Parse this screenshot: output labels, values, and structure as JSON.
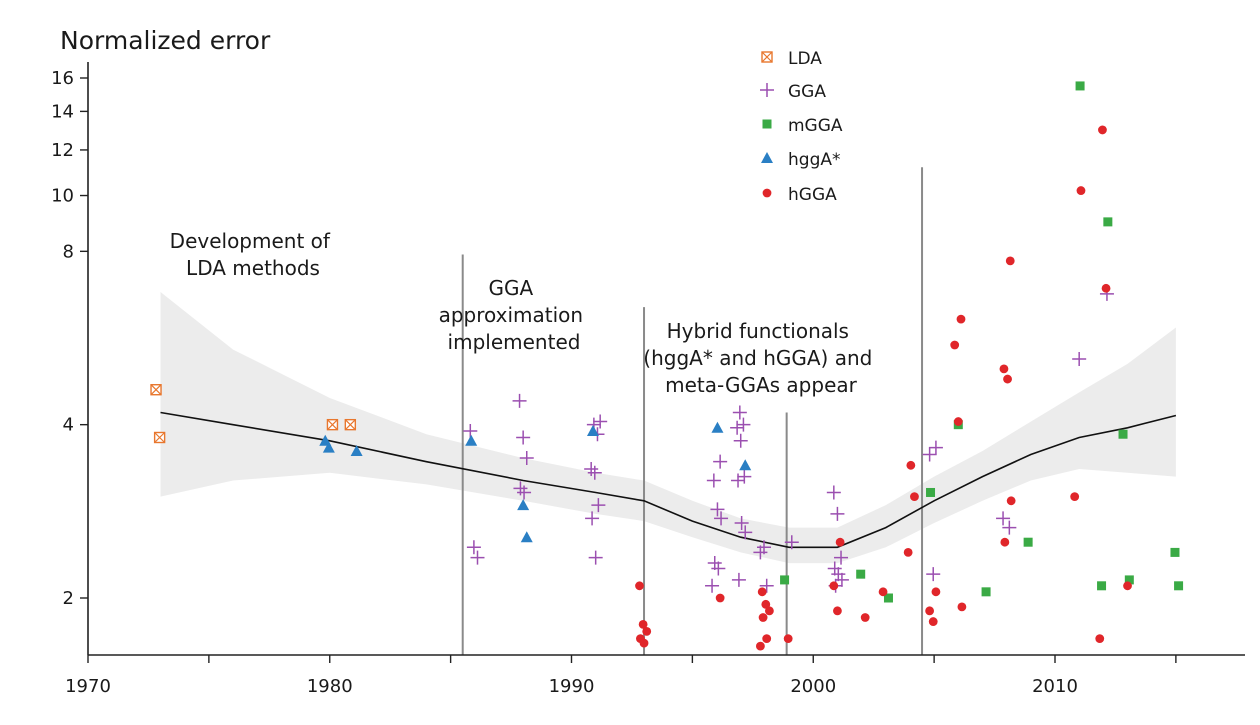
{
  "chart_data": {
    "type": "scatter",
    "title": "Normalized error",
    "xlabel": "",
    "ylabel": "Normalized error",
    "y_scale": "log2",
    "xlim": [
      1970,
      2017
    ],
    "ylim": [
      1.55,
      18
    ],
    "x_ticks": [
      1970,
      1980,
      1990,
      2000,
      2010
    ],
    "x_minor_ticks": [
      1975,
      1985,
      1995,
      2005,
      2015
    ],
    "y_ticks": [
      2,
      4,
      8,
      10,
      12,
      14,
      16
    ],
    "legend": [
      {
        "key": "LDA",
        "label": "LDA",
        "marker": "boxed-x",
        "color": "#e8772e"
      },
      {
        "key": "GGA",
        "label": "GGA",
        "marker": "plus",
        "color": "#9b4fb0"
      },
      {
        "key": "mGGA",
        "label": "mGGA",
        "marker": "square",
        "color": "#3aaa45"
      },
      {
        "key": "hggA",
        "label": "hggA*",
        "marker": "triangle",
        "color": "#2a7fc4"
      },
      {
        "key": "hGGA",
        "label": "hGGA",
        "marker": "circle",
        "color": "#e0262a"
      }
    ],
    "series": [
      {
        "name": "LDA",
        "points": [
          [
            1973,
            4.6
          ],
          [
            1973,
            3.8
          ],
          [
            1980,
            4.0
          ],
          [
            1981,
            4.0
          ]
        ]
      },
      {
        "name": "GGA",
        "points": [
          [
            1986,
            3.9
          ],
          [
            1986,
            2.45
          ],
          [
            1986,
            2.35
          ],
          [
            1988,
            4.4
          ],
          [
            1988,
            3.8
          ],
          [
            1988,
            3.5
          ],
          [
            1988,
            3.1
          ],
          [
            1988,
            3.05
          ],
          [
            1991,
            4.05
          ],
          [
            1991,
            4.0
          ],
          [
            1991,
            3.85
          ],
          [
            1991,
            3.35
          ],
          [
            1991,
            3.3
          ],
          [
            1991,
            2.9
          ],
          [
            1991,
            2.75
          ],
          [
            1991,
            2.35
          ],
          [
            1996,
            3.45
          ],
          [
            1996,
            3.2
          ],
          [
            1996,
            2.85
          ],
          [
            1996,
            2.75
          ],
          [
            1996,
            2.3
          ],
          [
            1996,
            2.25
          ],
          [
            1996,
            2.1
          ],
          [
            1997,
            4.2
          ],
          [
            1997,
            4.0
          ],
          [
            1997,
            3.95
          ],
          [
            1997,
            3.75
          ],
          [
            1997,
            3.25
          ],
          [
            1997,
            3.2
          ],
          [
            1997,
            2.7
          ],
          [
            1997,
            2.6
          ],
          [
            1997,
            2.15
          ],
          [
            1998,
            2.1
          ],
          [
            1998,
            2.4
          ],
          [
            1998,
            2.45
          ],
          [
            1999,
            2.5
          ],
          [
            2001,
            3.05
          ],
          [
            2001,
            2.8
          ],
          [
            2001,
            2.35
          ],
          [
            2001,
            2.25
          ],
          [
            2001,
            2.2
          ],
          [
            2001,
            2.15
          ],
          [
            2001,
            2.1
          ],
          [
            2005,
            3.65
          ],
          [
            2005,
            3.55
          ],
          [
            2005,
            2.2
          ],
          [
            2008,
            2.65
          ],
          [
            2008,
            2.75
          ],
          [
            2011,
            5.2
          ],
          [
            2012,
            6.75
          ]
        ]
      },
      {
        "name": "mGGA",
        "points": [
          [
            1999,
            2.15
          ],
          [
            2002,
            2.2
          ],
          [
            2003,
            2.0
          ],
          [
            2005,
            3.05
          ],
          [
            2006,
            4.0
          ],
          [
            2007,
            2.05
          ],
          [
            2009,
            2.5
          ],
          [
            2011,
            15.5
          ],
          [
            2012,
            9.0
          ],
          [
            2012,
            2.1
          ],
          [
            2013,
            2.15
          ],
          [
            2013,
            3.85
          ],
          [
            2015,
            2.4
          ],
          [
            2015,
            2.1
          ]
        ]
      },
      {
        "name": "hggA",
        "points": [
          [
            1980,
            3.75
          ],
          [
            1980,
            3.65
          ],
          [
            1981,
            3.6
          ],
          [
            1986,
            3.75
          ],
          [
            1988,
            2.9
          ],
          [
            1988,
            2.55
          ],
          [
            1991,
            3.9
          ],
          [
            1996,
            3.95
          ],
          [
            1997,
            3.4
          ]
        ]
      },
      {
        "name": "hGGA",
        "points": [
          [
            1993,
            2.1
          ],
          [
            1993,
            1.8
          ],
          [
            1993,
            1.75
          ],
          [
            1993,
            1.7
          ],
          [
            1993,
            1.67
          ],
          [
            1996,
            2.0
          ],
          [
            1998,
            2.05
          ],
          [
            1998,
            1.95
          ],
          [
            1998,
            1.9
          ],
          [
            1998,
            1.85
          ],
          [
            1998,
            1.7
          ],
          [
            1998,
            1.65
          ],
          [
            1999,
            1.7
          ],
          [
            2001,
            2.5
          ],
          [
            2001,
            2.1
          ],
          [
            2001,
            1.9
          ],
          [
            2002,
            1.85
          ],
          [
            2003,
            2.05
          ],
          [
            2004,
            3.4
          ],
          [
            2004,
            3.0
          ],
          [
            2004,
            2.4
          ],
          [
            2005,
            2.05
          ],
          [
            2005,
            1.9
          ],
          [
            2005,
            1.82
          ],
          [
            2006,
            6.1
          ],
          [
            2006,
            5.5
          ],
          [
            2006,
            4.05
          ],
          [
            2006,
            1.93
          ],
          [
            2008,
            5.0
          ],
          [
            2008,
            4.8
          ],
          [
            2008,
            2.95
          ],
          [
            2008,
            2.5
          ],
          [
            2011,
            10.2
          ],
          [
            2011,
            3.0
          ],
          [
            2012,
            13.0
          ],
          [
            2012,
            6.9
          ],
          [
            2012,
            1.7
          ],
          [
            2013,
            2.1
          ],
          [
            2008,
            7.7
          ]
        ]
      }
    ],
    "trend": {
      "x": [
        1973,
        1976,
        1980,
        1984,
        1988,
        1991,
        1993,
        1995,
        1997,
        1999,
        2001,
        2003,
        2005,
        2007,
        2009,
        2011,
        2013,
        2015
      ],
      "y": [
        4.2,
        4.0,
        3.75,
        3.45,
        3.2,
        3.05,
        2.95,
        2.72,
        2.55,
        2.45,
        2.45,
        2.65,
        2.95,
        3.25,
        3.55,
        3.8,
        3.95,
        4.15
      ],
      "lower": [
        3.0,
        3.2,
        3.3,
        3.15,
        2.95,
        2.8,
        2.72,
        2.55,
        2.4,
        2.3,
        2.3,
        2.45,
        2.7,
        2.95,
        3.2,
        3.35,
        3.3,
        3.25
      ],
      "upper": [
        6.8,
        5.4,
        4.45,
        3.85,
        3.5,
        3.3,
        3.2,
        2.95,
        2.75,
        2.65,
        2.65,
        2.9,
        3.25,
        3.6,
        4.05,
        4.55,
        5.1,
        5.9
      ]
    },
    "dividers": [
      {
        "x": 1985.5,
        "y_top": 7.9
      },
      {
        "x": 1993.0,
        "y_top": 6.4
      },
      {
        "x": 1998.9,
        "y_top": 4.2
      },
      {
        "x": 2004.5,
        "y_top": 11.2
      }
    ],
    "eras": [
      {
        "lines": [
          "Development of",
          "LDA methods"
        ]
      },
      {
        "lines": [
          "GGA",
          "approximation",
          "implemented"
        ]
      },
      {
        "lines": [
          "Hybrid functionals",
          "(hggA* and hGGA) and",
          "meta-GGAs appear"
        ]
      }
    ]
  }
}
